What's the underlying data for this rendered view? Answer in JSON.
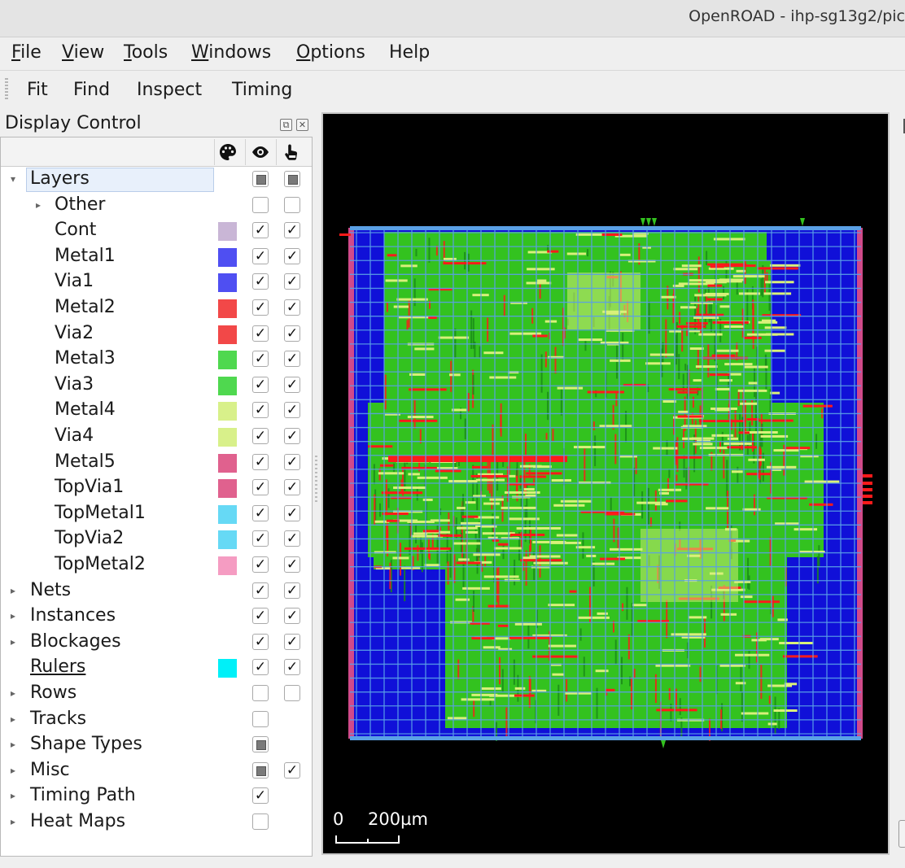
{
  "window": {
    "title": "OpenROAD - ihp-sg13g2/pic"
  },
  "menu": [
    {
      "label": "File",
      "mnemonic": "F",
      "rest": "ile"
    },
    {
      "label": "View",
      "mnemonic": "V",
      "rest": "iew"
    },
    {
      "label": "Tools",
      "mnemonic": "T",
      "rest": "ools"
    },
    {
      "label": "Windows",
      "mnemonic": "W",
      "rest": "indows"
    },
    {
      "label": "Options",
      "mnemonic": "O",
      "rest": "ptions"
    },
    {
      "label": "Help",
      "mnemonic": "",
      "rest": "Help"
    }
  ],
  "toolbar": {
    "fit": "Fit",
    "find": "Find",
    "inspect": "Inspect",
    "timing": "Timing"
  },
  "display_control": {
    "title": "Display Control",
    "header_icons": [
      "palette-icon",
      "eye-icon",
      "pointer-hand-icon"
    ],
    "rows": [
      {
        "label": "Layers",
        "expanded": true,
        "visible": "partial",
        "selectable": "partial"
      },
      {
        "label": "Other",
        "indent": 1,
        "collapsed": true,
        "visible": "off",
        "selectable": "off"
      },
      {
        "label": "Cont",
        "indent": 2,
        "color": "#c9b6d6",
        "visible": "on",
        "selectable": "on"
      },
      {
        "label": "Metal1",
        "indent": 2,
        "color": "#4f4ff2",
        "visible": "on",
        "selectable": "on"
      },
      {
        "label": "Via1",
        "indent": 2,
        "color": "#4f4ff2",
        "visible": "on",
        "selectable": "on"
      },
      {
        "label": "Metal2",
        "indent": 2,
        "color": "#f24848",
        "visible": "on",
        "selectable": "on"
      },
      {
        "label": "Via2",
        "indent": 2,
        "color": "#f24848",
        "visible": "on",
        "selectable": "on"
      },
      {
        "label": "Metal3",
        "indent": 2,
        "color": "#4fd84f",
        "visible": "on",
        "selectable": "on"
      },
      {
        "label": "Via3",
        "indent": 2,
        "color": "#4fd84f",
        "visible": "on",
        "selectable": "on"
      },
      {
        "label": "Metal4",
        "indent": 2,
        "color": "#d8f08a",
        "visible": "on",
        "selectable": "on"
      },
      {
        "label": "Via4",
        "indent": 2,
        "color": "#d8f08a",
        "visible": "on",
        "selectable": "on"
      },
      {
        "label": "Metal5",
        "indent": 2,
        "color": "#e0618e",
        "visible": "on",
        "selectable": "on"
      },
      {
        "label": "TopVia1",
        "indent": 2,
        "color": "#e0618e",
        "visible": "on",
        "selectable": "on"
      },
      {
        "label": "TopMetal1",
        "indent": 2,
        "color": "#66d9f5",
        "visible": "on",
        "selectable": "on"
      },
      {
        "label": "TopVia2",
        "indent": 2,
        "color": "#66d9f5",
        "visible": "on",
        "selectable": "on"
      },
      {
        "label": "TopMetal2",
        "indent": 2,
        "color": "#f59cc2",
        "visible": "on",
        "selectable": "on"
      },
      {
        "label": "Nets",
        "collapsed": true,
        "visible": "on",
        "selectable": "on"
      },
      {
        "label": "Instances",
        "collapsed": true,
        "visible": "on",
        "selectable": "on"
      },
      {
        "label": "Blockages",
        "collapsed": true,
        "visible": "on",
        "selectable": "on"
      },
      {
        "label": "Rulers",
        "underline": true,
        "color": "#00f0f8",
        "visible": "on",
        "selectable": "on"
      },
      {
        "label": "Rows",
        "collapsed": true,
        "visible": "off",
        "selectable": "off"
      },
      {
        "label": "Tracks",
        "collapsed": true,
        "visible": "off"
      },
      {
        "label": "Shape Types",
        "collapsed": true,
        "visible": "partial"
      },
      {
        "label": "Misc",
        "collapsed": true,
        "visible": "partial",
        "selectable": "on"
      },
      {
        "label": "Timing Path",
        "collapsed": true,
        "visible": "on"
      },
      {
        "label": "Heat Maps",
        "collapsed": true,
        "visible": "off"
      }
    ]
  },
  "viewer": {
    "scale_start": "0",
    "scale_label": "200µm",
    "colors": {
      "background": "#000000",
      "die": "#1010d8",
      "metal2": "#ff1a1a",
      "metal3": "#33c21f",
      "metal4": "#d9f07a",
      "grid": "#5aa0e6",
      "pin": "#d04a8a"
    }
  }
}
